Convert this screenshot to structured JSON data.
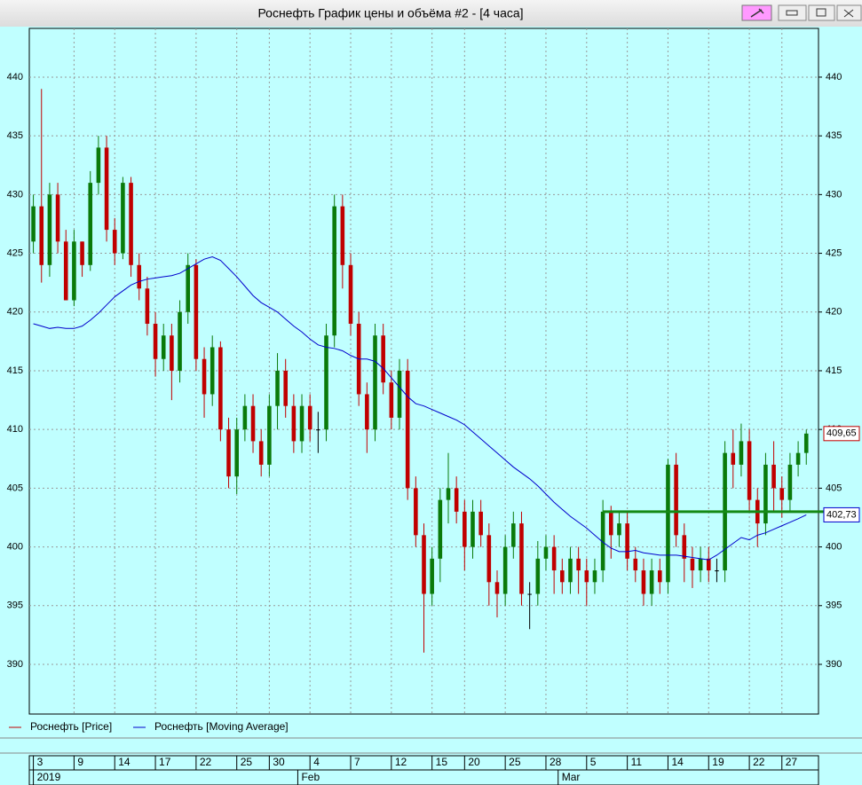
{
  "window": {
    "title": "Роснефть График цены и объёма #2 - [4 часа]"
  },
  "chart_data": {
    "type": "candlestick",
    "series": [
      {
        "name": "Роснефть [Price]",
        "color": "#c00000",
        "up_color": "#0a7a0a",
        "down_color": "#c00000",
        "open": [
          426,
          429,
          424,
          430,
          426,
          421,
          426,
          424,
          431,
          434,
          427,
          425,
          431,
          424,
          422,
          419,
          416,
          418,
          415,
          420,
          424,
          416,
          413,
          417,
          410,
          406,
          410,
          412,
          409,
          407,
          412,
          415,
          412,
          409,
          412,
          410,
          410,
          418,
          429,
          424,
          419,
          413,
          410,
          418,
          414,
          411,
          415,
          405,
          401,
          396,
          399,
          404,
          405,
          403,
          400,
          403,
          401,
          397,
          396,
          400,
          402,
          396,
          396,
          399,
          400,
          398,
          397,
          399,
          398,
          397,
          398,
          403,
          401,
          402,
          399,
          398,
          396,
          398,
          397,
          407,
          401,
          399,
          398,
          399,
          398,
          398,
          408,
          407,
          409,
          404,
          402,
          407,
          405,
          404,
          407,
          408
        ],
        "high": [
          430,
          439,
          431,
          431,
          427,
          427,
          426,
          432,
          435,
          435,
          428,
          431.5,
          431.5,
          425,
          423,
          420,
          419,
          419,
          421,
          425,
          424.5,
          417,
          418,
          417.5,
          411,
          411,
          413,
          413,
          410,
          413,
          416.5,
          416,
          413,
          413,
          413,
          411.5,
          419,
          430,
          430,
          425,
          420,
          414,
          419,
          419,
          415,
          416,
          416,
          406,
          402,
          400,
          405,
          408,
          406,
          404,
          404,
          404,
          402,
          398,
          401,
          403,
          403,
          397,
          400.5,
          401,
          401,
          399,
          400,
          400,
          399,
          399,
          404,
          403.5,
          403,
          403,
          400,
          399,
          399,
          399,
          407.5,
          408,
          402,
          400,
          400,
          400,
          399,
          409,
          410,
          410.5,
          410,
          405,
          408,
          409,
          406,
          408,
          409,
          410
        ],
        "low": [
          425,
          422.5,
          423,
          425,
          421,
          420.5,
          423,
          423.5,
          430,
          426,
          424,
          424.5,
          423,
          421,
          418,
          414.5,
          415,
          412.5,
          414,
          419,
          415,
          411,
          412,
          409,
          405,
          404.5,
          409,
          408,
          406,
          406,
          410,
          411,
          408,
          408,
          409,
          408,
          409,
          417,
          422,
          418,
          412,
          408,
          409,
          413,
          410,
          410,
          404,
          400,
          391,
          395,
          397,
          402,
          402,
          398,
          399,
          400,
          395,
          394,
          395,
          399,
          395,
          393,
          395,
          398,
          396,
          396,
          396,
          396,
          395,
          396,
          397,
          399,
          400,
          398,
          397,
          395,
          395,
          396,
          396,
          400,
          397,
          396.5,
          397,
          397,
          397,
          397,
          405,
          406,
          403,
          400,
          401,
          403,
          402.5,
          403,
          406,
          407
        ],
        "close": [
          429,
          424,
          430,
          426,
          421,
          426,
          424,
          431,
          434,
          427,
          425,
          431,
          424,
          422,
          419,
          416,
          418,
          415,
          420,
          424,
          416,
          413,
          417,
          410,
          406,
          410,
          412,
          409,
          407,
          412,
          415,
          412,
          409,
          412,
          410,
          410,
          418,
          429,
          424,
          419,
          413,
          410,
          418,
          414,
          411,
          415,
          405,
          401,
          396,
          399,
          404,
          405,
          403,
          400,
          403,
          401,
          397,
          396,
          400,
          402,
          396,
          396,
          399,
          400,
          398,
          397,
          399,
          398,
          397,
          398,
          403,
          401,
          402,
          399,
          398,
          396,
          398,
          397,
          407,
          401,
          399,
          398,
          399,
          398,
          398,
          408,
          407,
          409,
          404,
          402,
          407,
          405,
          404,
          407,
          408,
          409.65
        ]
      },
      {
        "name": "Роснефть [Moving Average]",
        "type": "line",
        "color": "#0000cc",
        "values": [
          419,
          418.8,
          418.6,
          418.7,
          418.6,
          418.6,
          418.8,
          419.3,
          419.9,
          420.6,
          421.3,
          421.8,
          422.3,
          422.6,
          422.8,
          422.9,
          423,
          423.1,
          423.3,
          423.7,
          424.1,
          424.5,
          424.7,
          424.4,
          423.7,
          423,
          422.2,
          421.4,
          420.8,
          420.4,
          420,
          419.4,
          418.8,
          418.3,
          417.7,
          417.2,
          417,
          416.9,
          416.7,
          416.3,
          416,
          416,
          415.8,
          415.2,
          414.4,
          413.6,
          412.8,
          412.2,
          412,
          411.7,
          411.4,
          411.1,
          410.8,
          410.4,
          409.8,
          409.2,
          408.6,
          408,
          407.4,
          406.8,
          406.3,
          405.8,
          405.2,
          404.5,
          403.8,
          403.2,
          402.6,
          402.1,
          401.6,
          401,
          400.4,
          399.9,
          399.6,
          399.6,
          399.7,
          399.5,
          399.4,
          399.3,
          399.3,
          399.3,
          399.2,
          399.1,
          399,
          398.9,
          399.3,
          399.8,
          400.3,
          400.8,
          400.6,
          401,
          401.2,
          401.5,
          401.8,
          402.1,
          402.4,
          402.73
        ]
      }
    ],
    "last_labels": [
      {
        "value": 409.65,
        "label": "409,65",
        "color": "#c00000"
      },
      {
        "value": 402.73,
        "label": "402,73",
        "color": "#0000cc"
      }
    ],
    "hline": {
      "value": 403,
      "x_start": 70,
      "color": "#158a15"
    },
    "xlim": [
      -0.5,
      96.5
    ],
    "xticks": [
      {
        "value": 0,
        "label": "3"
      },
      {
        "value": 5,
        "label": "9"
      },
      {
        "value": 10,
        "label": "14"
      },
      {
        "value": 15,
        "label": "17"
      },
      {
        "value": 20,
        "label": "22"
      },
      {
        "value": 25,
        "label": "25"
      },
      {
        "value": 29,
        "label": "30"
      },
      {
        "value": 34,
        "label": "4"
      },
      {
        "value": 39,
        "label": "7"
      },
      {
        "value": 44,
        "label": "12"
      },
      {
        "value": 49,
        "label": "15"
      },
      {
        "value": 53,
        "label": "20"
      },
      {
        "value": 58,
        "label": "25"
      },
      {
        "value": 63,
        "label": "28"
      },
      {
        "value": 68,
        "label": "5"
      },
      {
        "value": 73,
        "label": "11"
      },
      {
        "value": 78,
        "label": "14"
      },
      {
        "value": 83,
        "label": "19"
      },
      {
        "value": 88,
        "label": "22"
      },
      {
        "value": 92,
        "label": "27"
      }
    ],
    "month_ticks": [
      {
        "value": 0,
        "label": "2019"
      },
      {
        "value": 32.5,
        "label": "Feb"
      },
      {
        "value": 64.5,
        "label": "Mar"
      }
    ],
    "ylim": [
      385.77,
      444.15
    ],
    "yticks": [
      390,
      395,
      400,
      405,
      410,
      415,
      420,
      425,
      430,
      435,
      440
    ],
    "grid": true
  }
}
